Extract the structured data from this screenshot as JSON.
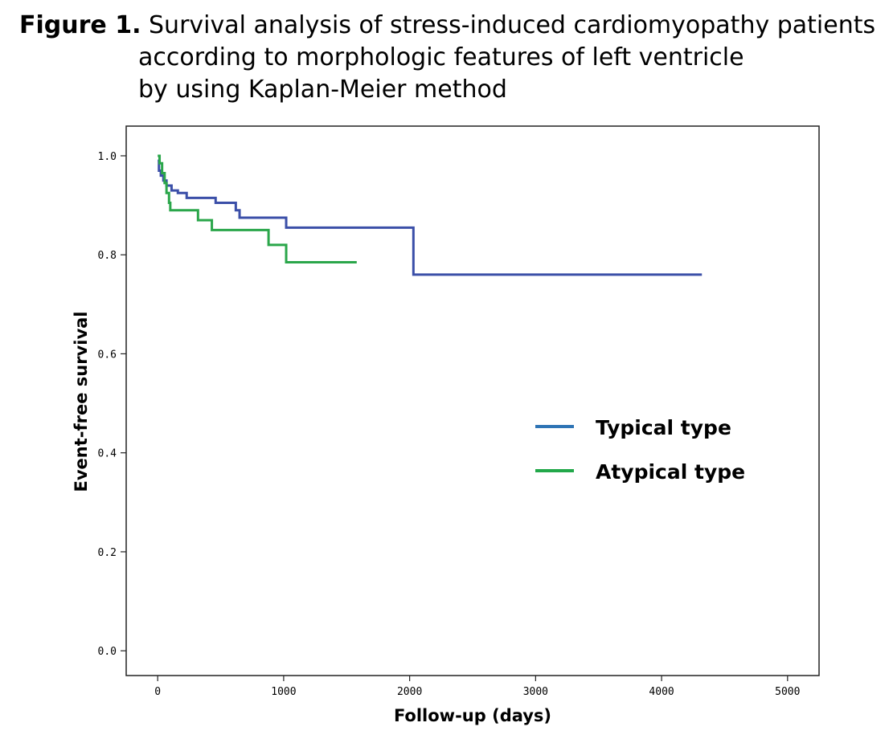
{
  "figure": {
    "lead": "Figure 1.",
    "title_lines": [
      "Survival analysis of stress-induced cardiomyopathy patients",
      "according to morphologic features of left ventricle",
      "by using Kaplan-Meier method"
    ]
  },
  "chart_data": {
    "type": "line",
    "step": true,
    "xlabel": "Follow-up (days)",
    "ylabel": "Event-free survival",
    "xlim": [
      -250,
      5250
    ],
    "ylim": [
      -0.05,
      1.06
    ],
    "xticks": [
      0,
      1000,
      2000,
      3000,
      4000,
      5000
    ],
    "yticks": [
      0.0,
      0.2,
      0.4,
      0.6,
      0.8,
      1.0
    ],
    "xtick_labels": [
      "0",
      "1000",
      "2000",
      "3000",
      "4000",
      "5000"
    ],
    "ytick_labels": [
      "0.0",
      "0.2",
      "0.4",
      "0.6",
      "0.8",
      "1.0"
    ],
    "grid": false,
    "legend_position": "center-right",
    "series": [
      {
        "name": "Typical type",
        "color": "#3b4fa8",
        "legend_color": "#2e74b5",
        "points": [
          [
            0,
            0.99
          ],
          [
            10,
            0.97
          ],
          [
            25,
            0.96
          ],
          [
            45,
            0.95
          ],
          [
            70,
            0.94
          ],
          [
            110,
            0.93
          ],
          [
            160,
            0.925
          ],
          [
            230,
            0.915
          ],
          [
            460,
            0.905
          ],
          [
            620,
            0.89
          ],
          [
            650,
            0.875
          ],
          [
            1020,
            0.855
          ],
          [
            2030,
            0.76
          ],
          [
            4320,
            0.76
          ]
        ]
      },
      {
        "name": "Atypical type",
        "color": "#2aa64a",
        "legend_color": "#22a84a",
        "points": [
          [
            0,
            1.0
          ],
          [
            15,
            0.985
          ],
          [
            35,
            0.965
          ],
          [
            55,
            0.945
          ],
          [
            70,
            0.925
          ],
          [
            90,
            0.905
          ],
          [
            100,
            0.89
          ],
          [
            320,
            0.87
          ],
          [
            430,
            0.85
          ],
          [
            880,
            0.82
          ],
          [
            1020,
            0.785
          ],
          [
            1580,
            0.785
          ]
        ]
      }
    ]
  }
}
